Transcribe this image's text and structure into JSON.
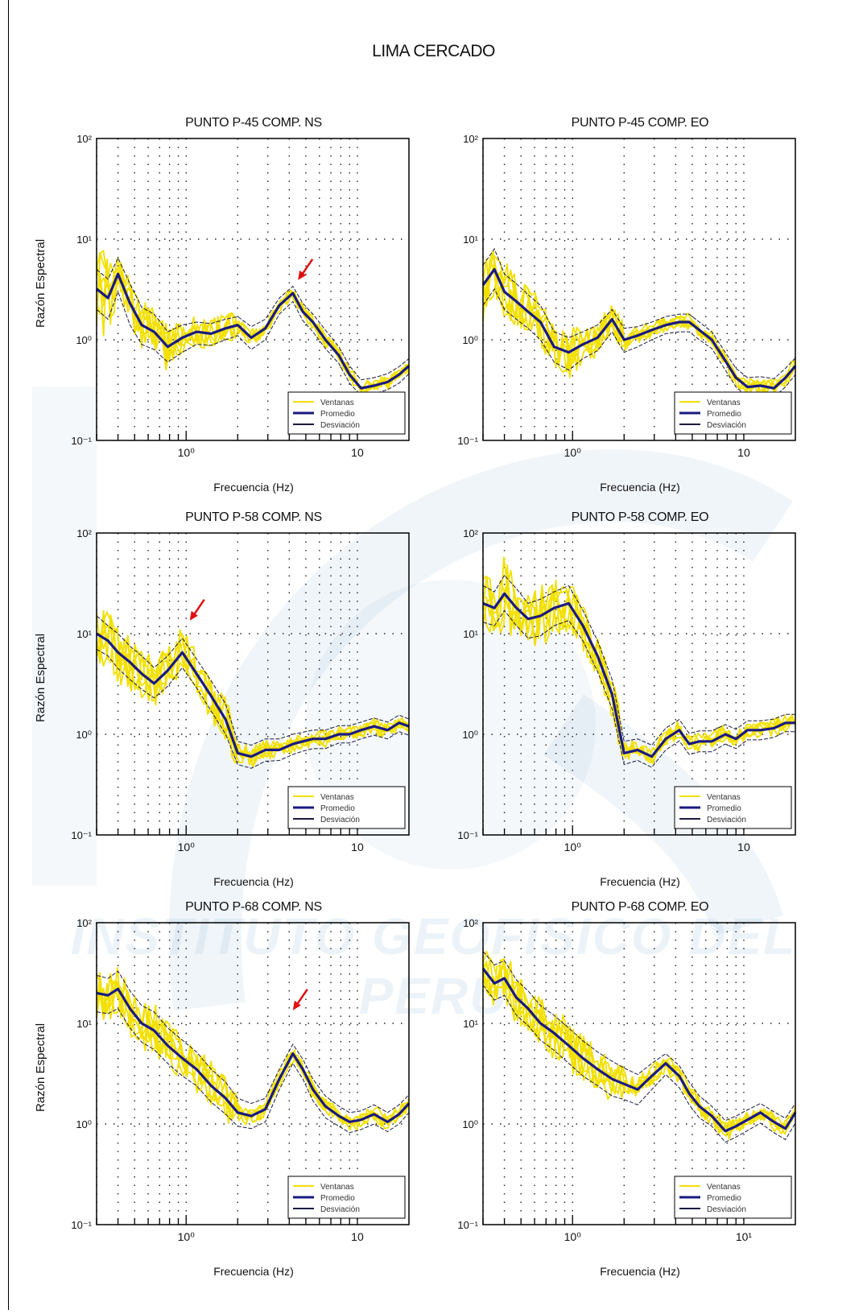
{
  "page": {
    "title": "LIMA CERCADO",
    "watermark": "INSTITUTO GEOFISICO DEL PERU"
  },
  "colors": {
    "individual": "#f2e000",
    "mean": "#1a1a80",
    "std": "#1a1a40",
    "arrow": "#e01010",
    "grid": "#222222"
  },
  "chart_data": [
    {
      "type": "line",
      "title": "PUNTO P-45  COMP. NS",
      "xlabel": "Frecuencia (Hz)",
      "ylabel": "Razón Espectral",
      "xscale": "log",
      "yscale": "log",
      "xlim": [
        0.3,
        20
      ],
      "ylim": [
        0.1,
        100
      ],
      "grid": "dotted",
      "xticks": [
        {
          "v": 1,
          "label": "10⁰"
        },
        {
          "v": 10,
          "label": "10"
        }
      ],
      "yticks": [
        {
          "v": 0.1,
          "label": "10⁻¹"
        },
        {
          "v": 1,
          "label": "10⁰"
        },
        {
          "v": 10,
          "label": "10¹"
        },
        {
          "v": 100,
          "label": "10²"
        }
      ],
      "legend": {
        "placement": "bottom-right",
        "entries": [
          "Ventanas",
          "Promedio",
          "Desviación"
        ]
      },
      "arrow_at": [
        4.5,
        2.9
      ],
      "x": [
        0.3,
        0.35,
        0.4,
        0.47,
        0.55,
        0.65,
        0.78,
        0.95,
        1.15,
        1.4,
        1.7,
        2.0,
        2.4,
        2.9,
        3.5,
        4.2,
        4.8,
        5.5,
        6.5,
        7.8,
        9.0,
        10.5,
        12.5,
        15.0,
        17.5,
        20.0
      ],
      "mean": [
        3.2,
        2.6,
        4.5,
        2.3,
        1.4,
        1.2,
        0.85,
        1.05,
        1.2,
        1.15,
        1.3,
        1.4,
        1.05,
        1.3,
        2.2,
        2.9,
        1.9,
        1.5,
        1.0,
        0.7,
        0.45,
        0.33,
        0.35,
        0.38,
        0.45,
        0.55
      ],
      "upper": [
        5.0,
        4.0,
        6.5,
        3.6,
        2.1,
        1.8,
        1.2,
        1.4,
        1.5,
        1.45,
        1.6,
        1.7,
        1.35,
        1.6,
        2.6,
        3.4,
        2.3,
        1.8,
        1.25,
        0.85,
        0.55,
        0.4,
        0.42,
        0.46,
        0.54,
        0.65
      ],
      "lower": [
        2.0,
        1.6,
        3.0,
        1.4,
        0.9,
        0.8,
        0.6,
        0.75,
        0.9,
        0.88,
        1.0,
        1.1,
        0.8,
        1.0,
        1.8,
        2.4,
        1.55,
        1.2,
        0.82,
        0.58,
        0.37,
        0.28,
        0.29,
        0.32,
        0.37,
        0.46
      ],
      "windows_peak": [
        15,
        9,
        6.5,
        4,
        2.5,
        2,
        1.5,
        1.6,
        1.7,
        1.6,
        1.8,
        1.9,
        1.5,
        1.7,
        2.8,
        3.7,
        2.5,
        1.9,
        1.4,
        0.9,
        0.6,
        0.42,
        0.44,
        0.48,
        0.56,
        0.7
      ]
    },
    {
      "type": "line",
      "title": "PUNTO P-45  COMP. EO",
      "xlabel": "Frecuencia (Hz)",
      "ylabel": "",
      "xscale": "log",
      "yscale": "log",
      "xlim": [
        0.3,
        20
      ],
      "ylim": [
        0.1,
        100
      ],
      "grid": "dotted",
      "xticks": [
        {
          "v": 1,
          "label": "10⁰"
        },
        {
          "v": 10,
          "label": "10"
        }
      ],
      "yticks": [
        {
          "v": 0.1,
          "label": "10⁻¹"
        },
        {
          "v": 1,
          "label": "10⁰"
        },
        {
          "v": 10,
          "label": "10¹"
        },
        {
          "v": 100,
          "label": "10²"
        }
      ],
      "legend": {
        "placement": "bottom-right",
        "entries": [
          "Ventanas",
          "Promedio",
          "Desviación"
        ]
      },
      "x": [
        0.3,
        0.35,
        0.4,
        0.47,
        0.55,
        0.65,
        0.78,
        0.95,
        1.15,
        1.4,
        1.7,
        2.0,
        2.4,
        2.9,
        3.5,
        4.2,
        4.8,
        5.5,
        6.5,
        7.8,
        9.0,
        10.5,
        12.5,
        15.0,
        17.5,
        20.0
      ],
      "mean": [
        3.5,
        5.0,
        3.0,
        2.4,
        1.9,
        1.5,
        0.85,
        0.75,
        0.9,
        1.05,
        1.6,
        1.0,
        1.1,
        1.25,
        1.4,
        1.5,
        1.5,
        1.25,
        1.0,
        0.62,
        0.42,
        0.34,
        0.35,
        0.33,
        0.42,
        0.55
      ],
      "upper": [
        5.5,
        8.0,
        4.5,
        3.6,
        2.8,
        2.2,
        1.2,
        1.05,
        1.2,
        1.4,
        2.0,
        1.3,
        1.35,
        1.5,
        1.7,
        1.8,
        1.8,
        1.5,
        1.2,
        0.75,
        0.52,
        0.42,
        0.43,
        0.41,
        0.52,
        0.66
      ],
      "lower": [
        2.2,
        3.2,
        2.0,
        1.6,
        1.3,
        1.0,
        0.6,
        0.5,
        0.65,
        0.78,
        1.2,
        0.75,
        0.85,
        1.0,
        1.15,
        1.2,
        1.2,
        1.0,
        0.82,
        0.5,
        0.34,
        0.27,
        0.28,
        0.27,
        0.34,
        0.45
      ],
      "windows_peak": [
        9,
        13,
        7,
        5,
        3.5,
        3,
        1.5,
        1.3,
        1.4,
        1.6,
        2.2,
        1.5,
        1.5,
        1.6,
        1.9,
        2.0,
        2.0,
        1.7,
        1.3,
        0.85,
        0.6,
        0.46,
        0.47,
        0.45,
        0.58,
        0.72
      ]
    },
    {
      "type": "line",
      "title": "PUNTO P-58  COMP. NS",
      "xlabel": "Frecuencia (Hz)",
      "ylabel": "Razón Espectral",
      "xscale": "log",
      "yscale": "log",
      "xlim": [
        0.3,
        20
      ],
      "ylim": [
        0.1,
        100
      ],
      "grid": "dotted",
      "xticks": [
        {
          "v": 1,
          "label": "10⁰"
        },
        {
          "v": 10,
          "label": "10"
        }
      ],
      "yticks": [
        {
          "v": 0.1,
          "label": "10⁻¹"
        },
        {
          "v": 1,
          "label": "10⁰"
        },
        {
          "v": 10,
          "label": "10¹"
        },
        {
          "v": 100,
          "label": "10²"
        }
      ],
      "legend": {
        "placement": "bottom-right",
        "entries": [
          "Ventanas",
          "Promedio",
          "Desviación"
        ]
      },
      "arrow_at": [
        1.05,
        10
      ],
      "x": [
        0.3,
        0.35,
        0.4,
        0.47,
        0.55,
        0.65,
        0.78,
        0.95,
        1.15,
        1.4,
        1.7,
        2.0,
        2.4,
        2.9,
        3.5,
        4.2,
        4.8,
        5.5,
        6.5,
        7.8,
        9.0,
        10.5,
        12.5,
        15.0,
        17.5,
        20.0
      ],
      "mean": [
        10,
        8.5,
        6.5,
        5.2,
        4.0,
        3.2,
        4.3,
        6.5,
        4.0,
        2.4,
        1.4,
        0.65,
        0.6,
        0.7,
        0.7,
        0.8,
        0.85,
        0.9,
        0.9,
        1.0,
        1.0,
        1.1,
        1.2,
        1.1,
        1.3,
        1.2
      ],
      "upper": [
        15,
        12,
        10,
        7.5,
        6.0,
        4.6,
        6.0,
        9.0,
        5.6,
        3.4,
        2.0,
        0.85,
        0.78,
        0.9,
        0.9,
        1.0,
        1.05,
        1.1,
        1.1,
        1.22,
        1.22,
        1.32,
        1.45,
        1.32,
        1.55,
        1.42
      ],
      "lower": [
        7.0,
        6.0,
        4.5,
        3.5,
        2.8,
        2.3,
        3.0,
        4.6,
        2.9,
        1.7,
        1.0,
        0.5,
        0.46,
        0.54,
        0.55,
        0.63,
        0.68,
        0.72,
        0.72,
        0.82,
        0.82,
        0.9,
        0.98,
        0.9,
        1.06,
        0.98
      ],
      "windows_peak": [
        30,
        20,
        17,
        11,
        8,
        6,
        8,
        12,
        7,
        4.5,
        2.6,
        1.1,
        0.95,
        1.05,
        1.05,
        1.15,
        1.2,
        1.25,
        1.25,
        1.4,
        1.4,
        1.5,
        1.65,
        1.5,
        1.75,
        1.6
      ]
    },
    {
      "type": "line",
      "title": "PUNTO P-58  COMP. EO",
      "xlabel": "Frecuencia (Hz)",
      "ylabel": "",
      "xscale": "log",
      "yscale": "log",
      "xlim": [
        0.3,
        20
      ],
      "ylim": [
        0.1,
        100
      ],
      "grid": "dotted",
      "xticks": [
        {
          "v": 1,
          "label": "10⁰"
        },
        {
          "v": 10,
          "label": "10"
        }
      ],
      "yticks": [
        {
          "v": 0.1,
          "label": "10⁻¹"
        },
        {
          "v": 1,
          "label": "10⁰"
        },
        {
          "v": 10,
          "label": "10¹"
        },
        {
          "v": 100,
          "label": "10²"
        }
      ],
      "legend": {
        "placement": "bottom-right",
        "entries": [
          "Ventanas",
          "Promedio",
          "Desviación"
        ]
      },
      "x": [
        0.3,
        0.35,
        0.4,
        0.47,
        0.55,
        0.65,
        0.78,
        0.95,
        1.15,
        1.4,
        1.7,
        2.0,
        2.4,
        2.9,
        3.5,
        4.2,
        4.8,
        5.5,
        6.5,
        7.8,
        9.0,
        10.5,
        12.5,
        15.0,
        17.5,
        20.0
      ],
      "mean": [
        20,
        18,
        25,
        18,
        14,
        15,
        18,
        20,
        12,
        6.0,
        2.5,
        0.65,
        0.7,
        0.6,
        0.9,
        1.1,
        0.8,
        0.85,
        0.85,
        1.0,
        0.9,
        1.1,
        1.1,
        1.15,
        1.3,
        1.3
      ],
      "upper": [
        30,
        26,
        38,
        28,
        20,
        22,
        26,
        30,
        17,
        8.5,
        3.5,
        0.85,
        0.9,
        0.78,
        1.15,
        1.4,
        1.02,
        1.08,
        1.08,
        1.25,
        1.12,
        1.36,
        1.36,
        1.42,
        1.58,
        1.58
      ],
      "lower": [
        13,
        12,
        17,
        12,
        9,
        9.5,
        12,
        13.5,
        8.5,
        4.2,
        1.8,
        0.5,
        0.55,
        0.47,
        0.7,
        0.86,
        0.63,
        0.67,
        0.67,
        0.8,
        0.72,
        0.88,
        0.88,
        0.93,
        1.06,
        1.06
      ],
      "windows_peak": [
        40,
        32,
        90,
        40,
        26,
        30,
        35,
        40,
        22,
        11,
        4.5,
        1.1,
        1.05,
        0.95,
        1.4,
        1.7,
        1.25,
        1.3,
        1.3,
        1.5,
        1.35,
        1.6,
        1.6,
        1.65,
        1.8,
        1.8
      ]
    },
    {
      "type": "line",
      "title": "PUNTO P-68  COMP. NS",
      "xlabel": "Frecuencia (Hz)",
      "ylabel": "Razón Espectral",
      "xscale": "log",
      "yscale": "log",
      "xlim": [
        0.3,
        20
      ],
      "ylim": [
        0.1,
        100
      ],
      "grid": "dotted",
      "xticks": [
        {
          "v": 1,
          "label": "10⁰"
        },
        {
          "v": 10,
          "label": "10"
        }
      ],
      "yticks": [
        {
          "v": 0.1,
          "label": "10⁻¹"
        },
        {
          "v": 1,
          "label": "10⁰"
        },
        {
          "v": 10,
          "label": "10¹"
        },
        {
          "v": 100,
          "label": "10²"
        }
      ],
      "legend": {
        "placement": "bottom-right",
        "entries": [
          "Ventanas",
          "Promedio",
          "Desviación"
        ]
      },
      "arrow_at": [
        4.2,
        10
      ],
      "x": [
        0.3,
        0.35,
        0.4,
        0.47,
        0.55,
        0.65,
        0.78,
        0.95,
        1.15,
        1.4,
        1.7,
        2.0,
        2.4,
        2.9,
        3.5,
        4.2,
        4.8,
        5.5,
        6.5,
        7.8,
        9.0,
        10.5,
        12.5,
        15.0,
        17.5,
        20.0
      ],
      "mean": [
        20,
        19,
        22,
        14,
        10,
        8.5,
        6.0,
        4.5,
        3.5,
        2.4,
        1.8,
        1.3,
        1.2,
        1.4,
        2.8,
        5.0,
        3.5,
        2.2,
        1.5,
        1.2,
        1.05,
        1.1,
        1.25,
        1.05,
        1.25,
        1.6
      ],
      "upper": [
        30,
        28,
        33,
        21,
        15,
        13,
        9.0,
        6.8,
        5.2,
        3.5,
        2.6,
        1.8,
        1.6,
        1.8,
        3.5,
        6.2,
        4.4,
        2.8,
        1.9,
        1.5,
        1.3,
        1.35,
        1.55,
        1.3,
        1.55,
        1.95
      ],
      "lower": [
        13,
        12.5,
        14,
        9,
        6.5,
        5.5,
        4.0,
        3.0,
        2.4,
        1.65,
        1.25,
        0.95,
        0.9,
        1.05,
        2.2,
        4.0,
        2.8,
        1.7,
        1.15,
        0.95,
        0.82,
        0.88,
        1.0,
        0.84,
        1.0,
        1.3
      ],
      "windows_peak": [
        38,
        32,
        42,
        26,
        18,
        16,
        10,
        8,
        6,
        4.2,
        3.0,
        2.1,
        1.9,
        2.1,
        3.9,
        7.0,
        5.0,
        3.2,
        2.1,
        1.65,
        1.45,
        1.5,
        1.7,
        1.45,
        1.7,
        2.1
      ]
    },
    {
      "type": "line",
      "title": "PUNTO P-68  COMP. EO",
      "xlabel": "Frecuencia (Hz)",
      "ylabel": "",
      "xscale": "log",
      "yscale": "log",
      "xlim": [
        0.3,
        20
      ],
      "ylim": [
        0.1,
        100
      ],
      "grid": "dotted",
      "xticks": [
        {
          "v": 1,
          "label": "10⁰"
        },
        {
          "v": 10,
          "label": "10¹"
        }
      ],
      "yticks": [
        {
          "v": 0.1,
          "label": "10⁻¹"
        },
        {
          "v": 1,
          "label": "10⁰"
        },
        {
          "v": 10,
          "label": "10¹"
        },
        {
          "v": 100,
          "label": "10²"
        }
      ],
      "legend": {
        "placement": "bottom-right",
        "entries": [
          "Ventanas",
          "Promedio",
          "Desviación"
        ]
      },
      "x": [
        0.3,
        0.35,
        0.4,
        0.47,
        0.55,
        0.65,
        0.78,
        0.95,
        1.15,
        1.4,
        1.7,
        2.0,
        2.4,
        2.9,
        3.5,
        4.2,
        4.8,
        5.5,
        6.5,
        7.8,
        9.0,
        10.5,
        12.5,
        15.0,
        17.5,
        20.0
      ],
      "mean": [
        35,
        25,
        28,
        18,
        14,
        10,
        8.0,
        6.0,
        4.5,
        3.5,
        2.8,
        2.5,
        2.2,
        3.0,
        4.0,
        3.0,
        2.0,
        1.5,
        1.2,
        0.85,
        0.95,
        1.1,
        1.3,
        1.05,
        0.9,
        1.3
      ],
      "upper": [
        52,
        38,
        42,
        27,
        21,
        15,
        12,
        9.0,
        6.7,
        5.2,
        4.2,
        3.6,
        3.1,
        4.0,
        5.0,
        3.8,
        2.6,
        1.9,
        1.5,
        1.08,
        1.2,
        1.38,
        1.6,
        1.32,
        1.14,
        1.6
      ],
      "lower": [
        24,
        17,
        19,
        12,
        9.5,
        6.8,
        5.4,
        4.0,
        3.0,
        2.4,
        1.9,
        1.75,
        1.55,
        2.2,
        3.1,
        2.3,
        1.55,
        1.15,
        0.95,
        0.66,
        0.74,
        0.86,
        1.02,
        0.82,
        0.7,
        1.02
      ],
      "windows_peak": [
        65,
        50,
        55,
        33,
        25,
        19,
        14,
        11,
        8,
        6,
        4.8,
        4.0,
        3.5,
        4.6,
        6.0,
        4.3,
        3.0,
        2.2,
        1.7,
        1.2,
        1.35,
        1.55,
        1.8,
        1.45,
        1.25,
        1.8
      ]
    }
  ]
}
